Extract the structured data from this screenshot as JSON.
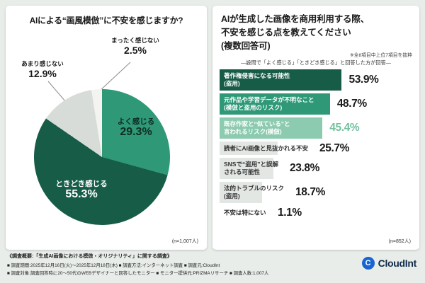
{
  "left_panel": {
    "title": "AIによる“画風模倣”に不安を感じますか?",
    "sample": "(n=1,007人)",
    "pie_labels": [
      {
        "name": "まったく感じない",
        "pct": "2.5%"
      },
      {
        "name": "あまり感じない",
        "pct": "12.9%"
      },
      {
        "name": "よく感じる",
        "pct": "29.3%"
      },
      {
        "name": "ときどき感じる",
        "pct": "55.3%"
      }
    ]
  },
  "right_panel": {
    "title": "AIが生成した画像を商用利用する際、\n不安を感じる点を教えてください\n(複数回答可)",
    "note": "※全8項目中上位7項目を抜粋",
    "subnote": "―設問で「よく感じる」「ときどき感じる」と回答した方が回答―",
    "items": [
      {
        "label": "著作権侵害になる可能性\n(盗用)",
        "value": "53.9%",
        "pct": 53.9,
        "bar_color": "#175c47",
        "label_color": "#ffffff",
        "value_color": "#1a1a1a",
        "lines": 2
      },
      {
        "label": "元作品や学習データが不明なこと\n(模倣と盗用のリスク)",
        "value": "48.7%",
        "pct": 48.7,
        "bar_color": "#2f9977",
        "label_color": "#ffffff",
        "value_color": "#1a1a1a",
        "lines": 2
      },
      {
        "label": "既存作家と“似ている”と\n言われるリスク(模倣)",
        "value": "45.4%",
        "pct": 45.4,
        "bar_color": "#8ccbb0",
        "label_color": "#ffffff",
        "value_color": "#74c0a0",
        "lines": 2
      },
      {
        "label": "読者にAI画像と見抜かれる不安",
        "value": "25.7%",
        "pct": 25.7,
        "bar_color": "#e3e7e4",
        "label_color": "#333333",
        "value_color": "#1a1a1a",
        "lines": 1
      },
      {
        "label": "SNSで“盗用”と誤解\nされる可能性",
        "value": "23.8%",
        "pct": 23.8,
        "bar_color": "#e3e7e4",
        "label_color": "#333333",
        "value_color": "#1a1a1a",
        "lines": 2
      },
      {
        "label": "法的トラブルのリスク\n(盗用)",
        "value": "18.7%",
        "pct": 18.7,
        "bar_color": "#e3e7e4",
        "label_color": "#333333",
        "value_color": "#1a1a1a",
        "lines": 2
      },
      {
        "label": "不安は特にない",
        "value": "1.1%",
        "pct": 1.1,
        "bar_color": "#ffffff",
        "label_color": "#1a1a1a",
        "value_color": "#1a1a1a",
        "lines": 1
      }
    ],
    "sample": "(n=852人)"
  },
  "footer": {
    "line1": "《調査概要:「生成AI画像における模倣・オリジナリティ」に関する調査》",
    "line2": "■ 調査期間:2025年12月16日(火)〜2025年12月18日(木) ■ 調査方法:インターネット調査 ■ 調査元:CloudInt",
    "line3": "■ 調査対象:調査回答時に20〜50代のWEBデザイナーと回答したモニター ■ モニター提供元:PRIZMAリサーチ ■ 調査人数:1,007人",
    "logo_text": "CloudInt",
    "logo_icon_letter": "C"
  },
  "colors": {
    "accent_dark_green": "#175c47",
    "accent_green": "#2f9977",
    "accent_light_green": "#8ccbb0",
    "neutral_gray": "#d8dcd9",
    "logo_blue": "#1765d3"
  },
  "chart_data": [
    {
      "type": "pie",
      "title": "AIによる“画風模倣”に不安を感じますか?",
      "labels": [
        "よく感じる",
        "ときどき感じる",
        "あまり感じない",
        "まったく感じない"
      ],
      "values": [
        29.3,
        55.3,
        12.9,
        2.5
      ],
      "colors": [
        "#2f9977",
        "#175c47",
        "#d8dcd9",
        "#f3f4f1"
      ],
      "note": "n=1,007人"
    },
    {
      "type": "bar",
      "orientation": "horizontal",
      "title": "AIが生成した画像を商用利用する際、不安を感じる点を教えてください(複数回答可)",
      "categories": [
        "著作権侵害になる可能性(盗用)",
        "元作品や学習データが不明なこと(模倣と盗用のリスク)",
        "既存作家と“似ている”と言われるリスク(模倣)",
        "読者にAI画像と見抜かれる不安",
        "SNSで“盗用”と誤解される可能性",
        "法的トラブルのリスク(盗用)",
        "不安は特にない"
      ],
      "values": [
        53.9,
        48.7,
        45.4,
        25.7,
        23.8,
        18.7,
        1.1
      ],
      "unit": "%",
      "xlim": [
        0,
        60
      ],
      "legend": false,
      "note": "n=852人"
    }
  ]
}
